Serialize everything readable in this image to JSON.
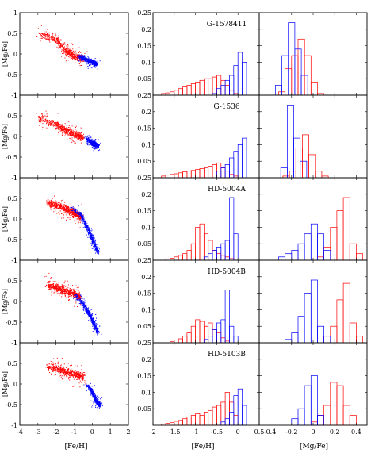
{
  "figure": {
    "columns": [
      "[Fe/H] vs [Mg/Fe] scatter",
      "[Fe/H] histogram",
      "[Mg/Fe] histogram"
    ],
    "colors": {
      "red": "#ff0000",
      "blue": "#0000ff"
    },
    "axis_labels": {
      "col0_x": "[Fe/H]",
      "col0_y": "[Mg/Fe]",
      "col1_x": "[Fe/H]",
      "col2_x": "[Mg/Fe]"
    },
    "ticks": {
      "col0_x": [
        "-4",
        "-3",
        "-2",
        "-1",
        "0",
        "1",
        "2"
      ],
      "col0_y": [
        "1",
        "0.5",
        "0",
        "-0.5",
        "-1"
      ],
      "col1_x": [
        "-2",
        "-1.5",
        "-1",
        "-0.5",
        "0",
        "0.5"
      ],
      "col2_x": [
        "-0.4",
        "-0.2",
        "0",
        "0.2",
        "0.4"
      ],
      "hist_y": [
        "0.25",
        "0.2",
        "0.15",
        "0.1",
        "0.05"
      ]
    }
  },
  "chart_data": [
    {
      "type": "scatter",
      "row": 0,
      "xlabel": "[Fe/H]",
      "ylabel": "[Mg/Fe]",
      "xlim": [
        -4,
        2
      ],
      "ylim": [
        -1,
        1
      ],
      "series": [
        {
          "color": "#ff0000",
          "trend": [
            [
              -3,
              0.5
            ],
            [
              -2,
              0.35
            ],
            [
              -1.5,
              0.1
            ],
            [
              -1,
              -0.05
            ],
            [
              -0.5,
              -0.12
            ]
          ]
        },
        {
          "color": "#0000ff",
          "trend": [
            [
              -0.8,
              -0.05
            ],
            [
              -0.4,
              -0.12
            ],
            [
              0,
              -0.2
            ],
            [
              0.2,
              -0.23
            ]
          ]
        }
      ]
    },
    {
      "type": "bar",
      "row": 0,
      "title": "G-1578411",
      "xlabel": "",
      "xlim": [
        -2,
        0.5
      ],
      "ylim": [
        0,
        0.25
      ],
      "series": [
        {
          "color": "#ff0000",
          "x": [
            -1.75,
            -1.65,
            -1.55,
            -1.45,
            -1.35,
            -1.25,
            -1.15,
            -1.05,
            -0.95,
            -0.85,
            -0.75,
            -0.65,
            -0.55,
            -0.45,
            -0.35,
            -0.25,
            -0.15,
            -0.05
          ],
          "values": [
            0.005,
            0.007,
            0.01,
            0.015,
            0.02,
            0.025,
            0.03,
            0.035,
            0.04,
            0.045,
            0.05,
            0.05,
            0.055,
            0.06,
            0.045,
            0.03,
            0.015,
            0.005
          ]
        },
        {
          "color": "#0000ff",
          "x": [
            -0.55,
            -0.45,
            -0.35,
            -0.25,
            -0.15,
            -0.05,
            0.05,
            0.15
          ],
          "values": [
            0.005,
            0.02,
            0.03,
            0.045,
            0.06,
            0.09,
            0.13,
            0.1
          ]
        }
      ]
    },
    {
      "type": "bar",
      "row": 0,
      "title": "",
      "xlabel": "",
      "xlim": [
        -0.5,
        0.5
      ],
      "ylim": [
        0,
        0.25
      ],
      "series": [
        {
          "color": "#ff0000",
          "x": [
            -0.29,
            -0.23,
            -0.17,
            -0.11,
            -0.05,
            0.01,
            0.07
          ],
          "values": [
            0.01,
            0.08,
            0.12,
            0.17,
            0.12,
            0.04,
            0.005
          ]
        },
        {
          "color": "#0000ff",
          "x": [
            -0.32,
            -0.26,
            -0.2,
            -0.14,
            -0.08
          ],
          "values": [
            0.03,
            0.12,
            0.22,
            0.14,
            0.06
          ]
        }
      ]
    },
    {
      "type": "scatter",
      "row": 1,
      "xlabel": "[Fe/H]",
      "ylabel": "[Mg/Fe]",
      "xlim": [
        -4,
        2
      ],
      "ylim": [
        -1,
        1
      ],
      "series": [
        {
          "color": "#ff0000",
          "trend": [
            [
              -3,
              0.45
            ],
            [
              -2,
              0.3
            ],
            [
              -1.5,
              0.15
            ],
            [
              -1,
              0.05
            ],
            [
              -0.5,
              0.0
            ]
          ]
        },
        {
          "color": "#0000ff",
          "trend": [
            [
              -0.4,
              -0.02
            ],
            [
              0,
              -0.15
            ],
            [
              0.3,
              -0.22
            ]
          ]
        }
      ]
    },
    {
      "type": "bar",
      "row": 1,
      "title": "G-1536",
      "xlabel": "",
      "xlim": [
        -2,
        0.5
      ],
      "ylim": [
        0,
        0.25
      ],
      "series": [
        {
          "color": "#ff0000",
          "x": [
            -1.75,
            -1.65,
            -1.55,
            -1.45,
            -1.35,
            -1.25,
            -1.15,
            -1.05,
            -0.95,
            -0.85,
            -0.75,
            -0.65,
            -0.55,
            -0.45,
            -0.35,
            -0.25,
            -0.15,
            -0.05
          ],
          "values": [
            0.005,
            0.008,
            0.01,
            0.012,
            0.015,
            0.018,
            0.02,
            0.022,
            0.025,
            0.028,
            0.03,
            0.035,
            0.04,
            0.045,
            0.03,
            0.02,
            0.01,
            0.005
          ]
        },
        {
          "color": "#0000ff",
          "x": [
            -0.45,
            -0.35,
            -0.25,
            -0.15,
            -0.05,
            0.05,
            0.15
          ],
          "values": [
            0.02,
            0.03,
            0.04,
            0.06,
            0.08,
            0.1,
            0.12
          ]
        }
      ]
    },
    {
      "type": "bar",
      "row": 1,
      "title": "",
      "xlabel": "",
      "xlim": [
        -0.5,
        0.5
      ],
      "ylim": [
        0,
        0.25
      ],
      "series": [
        {
          "color": "#ff0000",
          "x": [
            -0.25,
            -0.19,
            -0.13,
            -0.07,
            -0.01,
            0.05,
            0.11
          ],
          "values": [
            0.005,
            0.02,
            0.09,
            0.13,
            0.07,
            0.02,
            0.005
          ]
        },
        {
          "color": "#0000ff",
          "x": [
            -0.27,
            -0.21,
            -0.15,
            -0.09
          ],
          "values": [
            0.03,
            0.22,
            0.12,
            0.05
          ]
        }
      ]
    },
    {
      "type": "scatter",
      "row": 2,
      "xlabel": "[Fe/H]",
      "ylabel": "[Mg/Fe]",
      "xlim": [
        -4,
        2
      ],
      "ylim": [
        -1,
        1
      ],
      "series": [
        {
          "color": "#ff0000",
          "trend": [
            [
              -2.5,
              0.4
            ],
            [
              -2,
              0.35
            ],
            [
              -1.5,
              0.25
            ],
            [
              -1,
              0.15
            ],
            [
              -0.6,
              0.05
            ]
          ]
        },
        {
          "color": "#0000ff",
          "trend": [
            [
              -1.2,
              0.3
            ],
            [
              -0.6,
              0.1
            ],
            [
              -0.3,
              -0.2
            ],
            [
              0,
              -0.5
            ],
            [
              0.3,
              -0.8
            ]
          ]
        }
      ]
    },
    {
      "type": "bar",
      "row": 2,
      "title": "HD-5004A",
      "xlabel": "",
      "xlim": [
        -2,
        0.5
      ],
      "ylim": [
        0,
        0.25
      ],
      "series": [
        {
          "color": "#ff0000",
          "x": [
            -1.65,
            -1.55,
            -1.45,
            -1.35,
            -1.25,
            -1.15,
            -1.05,
            -0.95,
            -0.85,
            -0.75,
            -0.65,
            -0.55,
            -0.45,
            -0.35,
            -0.25,
            -0.15
          ],
          "values": [
            0.004,
            0.006,
            0.01,
            0.015,
            0.02,
            0.03,
            0.05,
            0.1,
            0.11,
            0.08,
            0.06,
            0.03,
            0.02,
            0.015,
            0.01,
            0.005
          ]
        },
        {
          "color": "#0000ff",
          "x": [
            -0.75,
            -0.65,
            -0.55,
            -0.45,
            -0.35,
            -0.25,
            -0.15,
            -0.05
          ],
          "values": [
            0.01,
            0.02,
            0.03,
            0.04,
            0.05,
            0.06,
            0.19,
            0.08
          ]
        }
      ]
    },
    {
      "type": "bar",
      "row": 2,
      "title": "",
      "xlabel": "",
      "xlim": [
        -0.5,
        0.5
      ],
      "ylim": [
        0,
        0.25
      ],
      "series": [
        {
          "color": "#ff0000",
          "x": [
            0.07,
            0.13,
            0.19,
            0.25,
            0.31,
            0.37,
            0.43
          ],
          "values": [
            0.01,
            0.04,
            0.1,
            0.15,
            0.19,
            0.05,
            0.02
          ]
        },
        {
          "color": "#0000ff",
          "x": [
            -0.29,
            -0.23,
            -0.17,
            -0.11,
            -0.05,
            0.01,
            0.07,
            0.13
          ],
          "values": [
            0.01,
            0.02,
            0.03,
            0.05,
            0.08,
            0.11,
            0.08,
            0.03
          ]
        }
      ]
    },
    {
      "type": "scatter",
      "row": 3,
      "xlabel": "[Fe/H]",
      "ylabel": "[Mg/Fe]",
      "xlim": [
        -4,
        2
      ],
      "ylim": [
        -1,
        1
      ],
      "series": [
        {
          "color": "#ff0000",
          "trend": [
            [
              -2.5,
              0.4
            ],
            [
              -2,
              0.35
            ],
            [
              -1.5,
              0.25
            ],
            [
              -1,
              0.2
            ],
            [
              -0.7,
              0.1
            ]
          ]
        },
        {
          "color": "#0000ff",
          "trend": [
            [
              -1.0,
              0.2
            ],
            [
              -0.6,
              0.0
            ],
            [
              -0.3,
              -0.2
            ],
            [
              0,
              -0.45
            ],
            [
              0.3,
              -0.75
            ]
          ]
        }
      ]
    },
    {
      "type": "bar",
      "row": 3,
      "title": "HD-5004B",
      "xlabel": "",
      "xlim": [
        -2,
        0.5
      ],
      "ylim": [
        0,
        0.25
      ],
      "series": [
        {
          "color": "#ff0000",
          "x": [
            -1.55,
            -1.45,
            -1.35,
            -1.25,
            -1.15,
            -1.05,
            -0.95,
            -0.85,
            -0.75,
            -0.65,
            -0.55,
            -0.45,
            -0.35,
            -0.25
          ],
          "values": [
            0.004,
            0.008,
            0.012,
            0.02,
            0.03,
            0.05,
            0.07,
            0.065,
            0.05,
            0.06,
            0.04,
            0.03,
            0.015,
            0.005
          ]
        },
        {
          "color": "#0000ff",
          "x": [
            -0.75,
            -0.65,
            -0.55,
            -0.45,
            -0.35,
            -0.25,
            -0.15,
            -0.05
          ],
          "values": [
            0.01,
            0.02,
            0.04,
            0.06,
            0.07,
            0.16,
            0.05,
            0.02
          ]
        }
      ]
    },
    {
      "type": "bar",
      "row": 3,
      "title": "",
      "xlabel": "",
      "xlim": [
        -0.5,
        0.5
      ],
      "ylim": [
        0,
        0.25
      ],
      "series": [
        {
          "color": "#ff0000",
          "x": [
            0.13,
            0.19,
            0.25,
            0.31,
            0.37,
            0.43
          ],
          "values": [
            0.02,
            0.05,
            0.13,
            0.18,
            0.06,
            0.02
          ]
        },
        {
          "color": "#0000ff",
          "x": [
            -0.23,
            -0.17,
            -0.11,
            -0.05,
            0.01,
            0.07,
            0.13
          ],
          "values": [
            0.01,
            0.03,
            0.08,
            0.15,
            0.19,
            0.05,
            0.02
          ]
        }
      ]
    },
    {
      "type": "scatter",
      "row": 4,
      "xlabel": "[Fe/H]",
      "ylabel": "[Mg/Fe]",
      "xlim": [
        -4,
        2
      ],
      "ylim": [
        -1,
        1
      ],
      "series": [
        {
          "color": "#ff0000",
          "trend": [
            [
              -2.5,
              0.42
            ],
            [
              -2,
              0.38
            ],
            [
              -1.5,
              0.3
            ],
            [
              -1,
              0.25
            ],
            [
              -0.5,
              0.18
            ]
          ]
        },
        {
          "color": "#0000ff",
          "trend": [
            [
              -0.3,
              0.0
            ],
            [
              0,
              -0.2
            ],
            [
              0.2,
              -0.4
            ],
            [
              0.4,
              -0.5
            ]
          ]
        }
      ]
    },
    {
      "type": "bar",
      "row": 4,
      "title": "HD-5103B",
      "xlabel": "[Fe/H]",
      "xlim": [
        -2,
        0.5
      ],
      "ylim": [
        0,
        0.25
      ],
      "series": [
        {
          "color": "#ff0000",
          "x": [
            -1.75,
            -1.65,
            -1.55,
            -1.45,
            -1.35,
            -1.25,
            -1.15,
            -1.05,
            -0.95,
            -0.85,
            -0.75,
            -0.65,
            -0.55,
            -0.45,
            -0.35,
            -0.25,
            -0.15,
            -0.05
          ],
          "values": [
            0.004,
            0.006,
            0.008,
            0.012,
            0.015,
            0.02,
            0.025,
            0.03,
            0.035,
            0.03,
            0.04,
            0.045,
            0.055,
            0.06,
            0.07,
            0.1,
            0.07,
            0.03
          ]
        },
        {
          "color": "#0000ff",
          "x": [
            -0.35,
            -0.25,
            -0.15,
            -0.05,
            0.05,
            0.15
          ],
          "values": [
            0.01,
            0.02,
            0.04,
            0.09,
            0.11,
            0.06
          ]
        }
      ]
    },
    {
      "type": "bar",
      "row": 4,
      "title": "",
      "xlabel": "[Mg/Fe]",
      "xlim": [
        -0.5,
        0.5
      ],
      "ylim": [
        0,
        0.25
      ],
      "series": [
        {
          "color": "#ff0000",
          "x": [
            0.01,
            0.07,
            0.13,
            0.19,
            0.25,
            0.31,
            0.37
          ],
          "values": [
            0.01,
            0.03,
            0.06,
            0.13,
            0.12,
            0.06,
            0.03
          ]
        },
        {
          "color": "#0000ff",
          "x": [
            -0.17,
            -0.11,
            -0.05,
            0.01,
            0.07
          ],
          "values": [
            0.02,
            0.05,
            0.12,
            0.15,
            0.03
          ]
        }
      ]
    }
  ]
}
